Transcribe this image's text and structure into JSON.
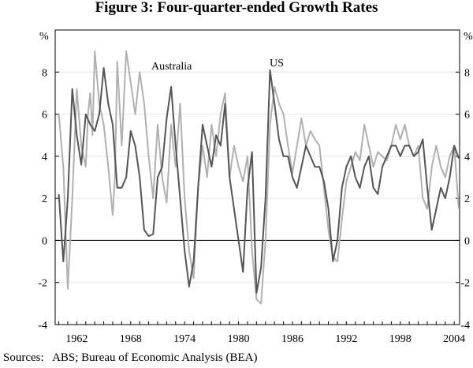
{
  "chart_data": {
    "type": "line",
    "title": "Figure 3: Four-quarter-ended Growth Rates",
    "ylabel_left": "%",
    "ylabel_right": "%",
    "ylim": [
      -4,
      10
    ],
    "yticks": [
      -4,
      -2,
      0,
      2,
      4,
      6,
      8
    ],
    "xlim": [
      1959.6,
      2004.6
    ],
    "xticks": [
      1962,
      1968,
      1974,
      1980,
      1986,
      1992,
      1998,
      2004
    ],
    "xtick_labels": [
      "1962",
      "1968",
      "1974",
      "1980",
      "1986",
      "1992",
      "1998",
      "2004"
    ],
    "zero_line": true,
    "series": [
      {
        "name": "Australia",
        "color": "#b0b0b0",
        "x": [
          1960,
          1960.5,
          1961,
          1961.5,
          1962,
          1962.5,
          1963,
          1963.25,
          1963.5,
          1963.75,
          1964,
          1964.5,
          1965,
          1965.5,
          1966,
          1966.25,
          1966.5,
          1967,
          1967.5,
          1968,
          1968.5,
          1969,
          1969.5,
          1970,
          1970.5,
          1971,
          1971.5,
          1972,
          1972.5,
          1973,
          1973.5,
          1974,
          1974.5,
          1975,
          1975.5,
          1976,
          1976.5,
          1977,
          1977.5,
          1978,
          1978.5,
          1979,
          1979.5,
          1980,
          1980.5,
          1981,
          1981.5,
          1982,
          1982.5,
          1983,
          1983.5,
          1984,
          1984.5,
          1985,
          1985.5,
          1986,
          1986.5,
          1987,
          1987.5,
          1988,
          1988.5,
          1989,
          1989.5,
          1990,
          1990.5,
          1991,
          1991.5,
          1992,
          1992.5,
          1993,
          1993.5,
          1994,
          1994.5,
          1995,
          1995.5,
          1996,
          1996.5,
          1997,
          1997.5,
          1998,
          1998.5,
          1999,
          1999.5,
          2000,
          2000.5,
          2001,
          2001.5,
          2002,
          2002.5,
          2003,
          2003.5,
          2004,
          2004.5
        ],
        "values": [
          6,
          3.5,
          -2.3,
          2,
          7.2,
          4.5,
          3.5,
          6,
          7,
          5,
          9,
          6.5,
          5.5,
          3.5,
          1.2,
          3,
          8.5,
          4.5,
          9,
          7.5,
          6,
          8,
          6.5,
          4,
          2,
          5.5,
          3,
          1.8,
          5.5,
          3.5,
          6.5,
          2,
          -0.5,
          -1.8,
          2.5,
          4.5,
          3,
          5.5,
          4,
          6,
          7,
          3,
          4.5,
          3.5,
          2.8,
          4,
          -0.5,
          -2.8,
          -3,
          0,
          5.5,
          7.3,
          6.5,
          6,
          4.5,
          3.2,
          4.5,
          5.8,
          4.5,
          5.2,
          4.8,
          4.5,
          2.5,
          0.5,
          -0.8,
          -1,
          1,
          2.8,
          3.5,
          4.2,
          3.8,
          5.5,
          4.5,
          3.5,
          4.2,
          4,
          3.8,
          4.5,
          5.5,
          4.8,
          5.5,
          4.5,
          4,
          4.5,
          2,
          1.5,
          3.5,
          4.5,
          3.5,
          3,
          4,
          4.5,
          1.5
        ]
      },
      {
        "name": "US",
        "color": "#555555",
        "x": [
          1960,
          1960.5,
          1961,
          1961.5,
          1962,
          1962.5,
          1963,
          1963.5,
          1964,
          1964.5,
          1965,
          1965.5,
          1966,
          1966.5,
          1967,
          1967.5,
          1968,
          1968.5,
          1969,
          1969.5,
          1970,
          1970.5,
          1971,
          1971.5,
          1972,
          1972.5,
          1973,
          1973.5,
          1974,
          1974.5,
          1975,
          1975.5,
          1976,
          1976.5,
          1977,
          1977.5,
          1978,
          1978.5,
          1979,
          1979.5,
          1980,
          1980.5,
          1981,
          1981.5,
          1982,
          1982.5,
          1983,
          1983.5,
          1984,
          1984.5,
          1985,
          1985.5,
          1986,
          1986.5,
          1987,
          1987.5,
          1988,
          1988.5,
          1989,
          1989.5,
          1990,
          1990.5,
          1991,
          1991.5,
          1992,
          1992.5,
          1993,
          1993.5,
          1994,
          1994.5,
          1995,
          1995.5,
          1996,
          1996.5,
          1997,
          1997.5,
          1998,
          1998.5,
          1999,
          1999.5,
          2000,
          2000.5,
          2001,
          2001.5,
          2002,
          2002.5,
          2003,
          2003.5,
          2004,
          2004.5
        ],
        "values": [
          2.2,
          -1,
          2,
          7.2,
          5,
          3.6,
          6,
          5.5,
          5.2,
          6,
          8.2,
          6.5,
          5.5,
          2.5,
          2.5,
          3,
          5.2,
          4.5,
          3,
          0.5,
          0.2,
          0.3,
          3,
          3.5,
          5.8,
          7.3,
          4.5,
          2,
          -0.5,
          -2.2,
          -1,
          2.5,
          5.5,
          4.5,
          3.5,
          5,
          4.5,
          6.5,
          3,
          1.5,
          0,
          -1.5,
          2.5,
          4.2,
          -2.5,
          -1.3,
          2,
          8.1,
          6.5,
          4.8,
          4,
          4,
          3,
          2.5,
          3.5,
          4.5,
          4,
          3.5,
          3.5,
          2.8,
          1.5,
          -1,
          0,
          2.5,
          3.5,
          4,
          3,
          2.5,
          3.5,
          4,
          2.5,
          2.2,
          3.5,
          4,
          4.5,
          4.5,
          4,
          4.5,
          4.5,
          4,
          4.2,
          4.8,
          2.5,
          0.5,
          1.5,
          2.5,
          2,
          3,
          4.5,
          3.9
        ]
      }
    ],
    "annotations": [
      {
        "text": "Australia",
        "series": "Australia"
      },
      {
        "text": "US",
        "series": "US"
      }
    ]
  },
  "source_note": "Sources:   ABS; Bureau of Economic Analysis (BEA)"
}
